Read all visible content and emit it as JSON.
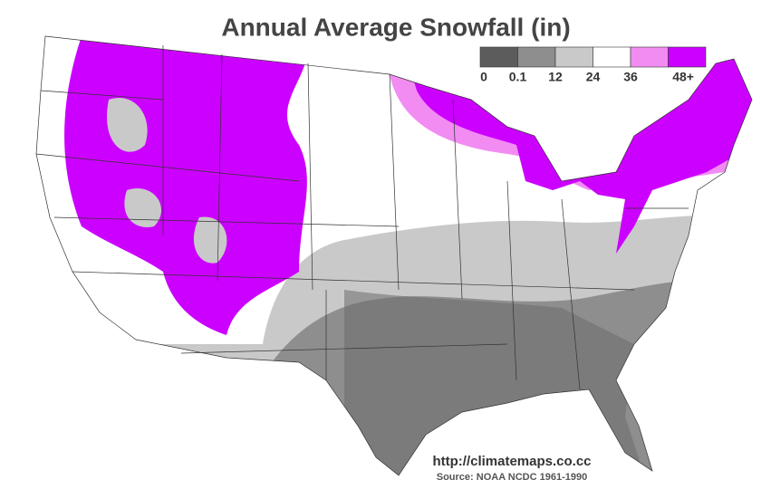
{
  "title": "Annual Average Snowfall (in)",
  "legend": {
    "colors": [
      "#5c5c5c",
      "#8e8e8e",
      "#c9c9c9",
      "#ffffff",
      "#f28cf2",
      "#cc00ff"
    ],
    "labels": [
      "0",
      "0.1",
      "12",
      "24",
      "36",
      "48+"
    ]
  },
  "footer": {
    "url": "http://climatemaps.co.cc",
    "source": "Source: NOAA NCDC 1961-1990"
  }
}
